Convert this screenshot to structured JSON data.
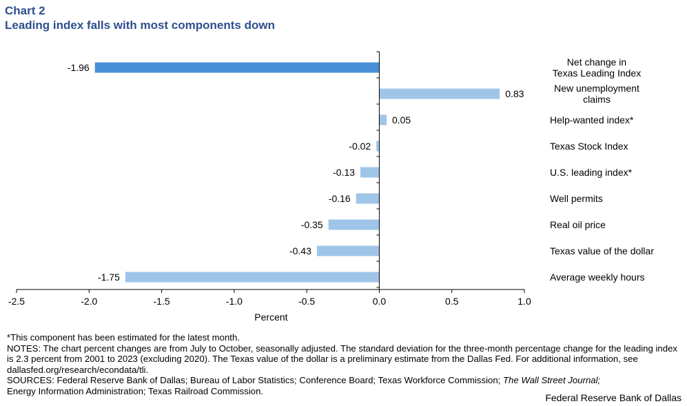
{
  "header": {
    "chart_number": "Chart 2",
    "title": "Leading index falls with most components down"
  },
  "chart_data": {
    "type": "bar",
    "orientation": "horizontal",
    "categories": [
      "Net change in Texas Leading Index",
      "New unemployment claims",
      "Help-wanted index*",
      "Texas Stock Index",
      "U.S. leading index*",
      "Well permits",
      "Real oil price",
      "Texas value of the dollar",
      "Average weekly hours"
    ],
    "category_label_lines": [
      [
        "Net change in",
        "Texas Leading Index"
      ],
      [
        "New unemployment",
        "claims"
      ],
      [
        "Help-wanted index*"
      ],
      [
        "Texas Stock Index"
      ],
      [
        "U.S. leading index*"
      ],
      [
        "Well permits"
      ],
      [
        "Real oil price"
      ],
      [
        "Texas value of the dollar"
      ],
      [
        "Average weekly hours"
      ]
    ],
    "values": [
      -1.96,
      0.83,
      0.05,
      -0.02,
      -0.13,
      -0.16,
      -0.35,
      -0.43,
      -1.75
    ],
    "value_labels": [
      "-1.96",
      "0.83",
      "0.05",
      "-0.02",
      "-0.13",
      "-0.16",
      "-0.35",
      "-0.43",
      "-1.75"
    ],
    "xlabel": "Percent",
    "xlim": [
      -2.5,
      1.0
    ],
    "xticks": [
      "-2.5",
      "-2.0",
      "-1.5",
      "-1.0",
      "-0.5",
      "0.0",
      "0.5",
      "1.0"
    ],
    "xtick_values": [
      -2.5,
      -2.0,
      -1.5,
      -1.0,
      -0.5,
      0.0,
      0.5,
      1.0
    ],
    "grid": false,
    "colors": {
      "highlight": "#4a90d9",
      "component": "#9fc5e8",
      "axis": "#000000"
    }
  },
  "footnotes": {
    "estimated": "*This component has been estimated for the latest month.",
    "notes": "NOTES: The chart percent changes are from July to October, seasonally adjusted. The standard deviation for the three-month percentage change for the leading index is 2.3 percent from 2001 to 2023 (excluding 2020). The Texas value of the dollar is a preliminary estimate from the Dallas Fed. For additional information, see dallasfed.org/research/econdata/tli.",
    "sources_prefix": "SOURCES: Federal Reserve Bank of Dallas; Bureau of Labor Statistics; Conference Board; Texas Workforce Commission; ",
    "sources_italic": "The Wall Street Journal;",
    "sources_suffix": "Energy Information Administration; Texas Railroad Commission."
  },
  "credit": "Federal Reserve Bank of Dallas"
}
